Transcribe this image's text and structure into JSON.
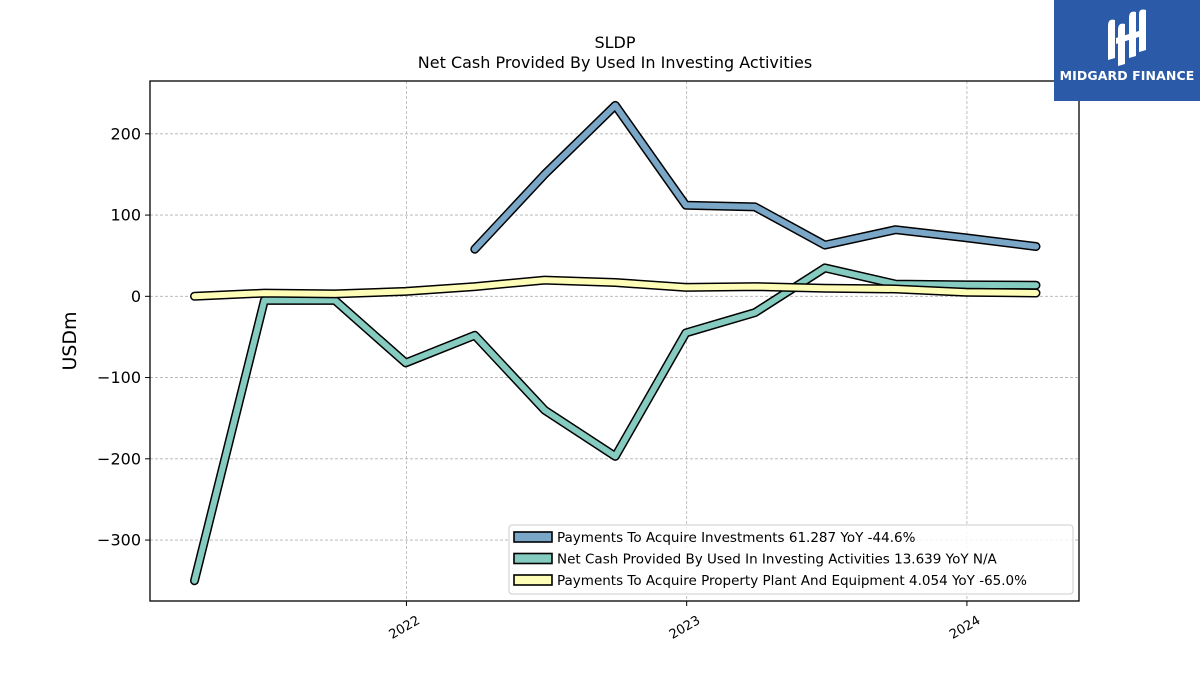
{
  "logo": {
    "text": "MIDGARD FINANCE"
  },
  "colors": {
    "investments": "#7aa6c8",
    "net_cash": "#85cbbf",
    "ppe": "#fdfdb7",
    "logo_bg": "#2b5aa8"
  },
  "chart_data": {
    "type": "line",
    "title": "SLDP",
    "subtitle": "Net Cash Provided By Used In Investing Activities",
    "ylabel": "USDm",
    "xlabel": "",
    "ylim": [
      -375,
      265
    ],
    "xlim": [
      "2021-02-01",
      "2024-05-26"
    ],
    "yticks": [
      -300,
      -200,
      -100,
      0,
      100,
      200
    ],
    "ytick_labels": [
      "−300",
      "−200",
      "−100",
      "0",
      "100",
      "200"
    ],
    "xticks": [
      "2022-01-01",
      "2023-01-01",
      "2024-01-01"
    ],
    "xtick_labels": [
      "2022",
      "2023",
      "2024"
    ],
    "grid": true,
    "legend_position": "lower-right",
    "series": [
      {
        "name": "Payments To Acquire Investments  61.287 YoY -44.6%",
        "color": "#7aa6c8",
        "points": [
          [
            "2022-03-31",
            58
          ],
          [
            "2022-06-30",
            150
          ],
          [
            "2022-09-30",
            235
          ],
          [
            "2022-12-31",
            112
          ],
          [
            "2023-03-31",
            110
          ],
          [
            "2023-06-30",
            63
          ],
          [
            "2023-09-30",
            82
          ],
          [
            "2023-12-31",
            72
          ],
          [
            "2024-03-31",
            61.287
          ]
        ]
      },
      {
        "name": "Net Cash Provided By Used In Investing Activities  13.639 YoY N/A",
        "color": "#85cbbf",
        "points": [
          [
            "2021-03-31",
            -350
          ],
          [
            "2021-06-30",
            -5
          ],
          [
            "2021-09-30",
            -5
          ],
          [
            "2021-12-31",
            -82
          ],
          [
            "2022-03-31",
            -48
          ],
          [
            "2022-06-30",
            -140
          ],
          [
            "2022-09-30",
            -197
          ],
          [
            "2022-12-31",
            -45
          ],
          [
            "2023-03-31",
            -20
          ],
          [
            "2023-06-30",
            35
          ],
          [
            "2023-09-30",
            15
          ],
          [
            "2023-12-31",
            14
          ],
          [
            "2024-03-31",
            13.639
          ]
        ]
      },
      {
        "name": "Payments To Acquire Property Plant And Equipment  4.054 YoY -65.0%",
        "color": "#fdfdb7",
        "points": [
          [
            "2021-03-31",
            0
          ],
          [
            "2021-06-30",
            4
          ],
          [
            "2021-09-30",
            3
          ],
          [
            "2021-12-31",
            6
          ],
          [
            "2022-03-31",
            12
          ],
          [
            "2022-06-30",
            20
          ],
          [
            "2022-09-30",
            17
          ],
          [
            "2022-12-31",
            11
          ],
          [
            "2023-03-31",
            12
          ],
          [
            "2023-06-30",
            10
          ],
          [
            "2023-09-30",
            9
          ],
          [
            "2023-12-31",
            5
          ],
          [
            "2024-03-31",
            4.054
          ]
        ]
      }
    ]
  }
}
